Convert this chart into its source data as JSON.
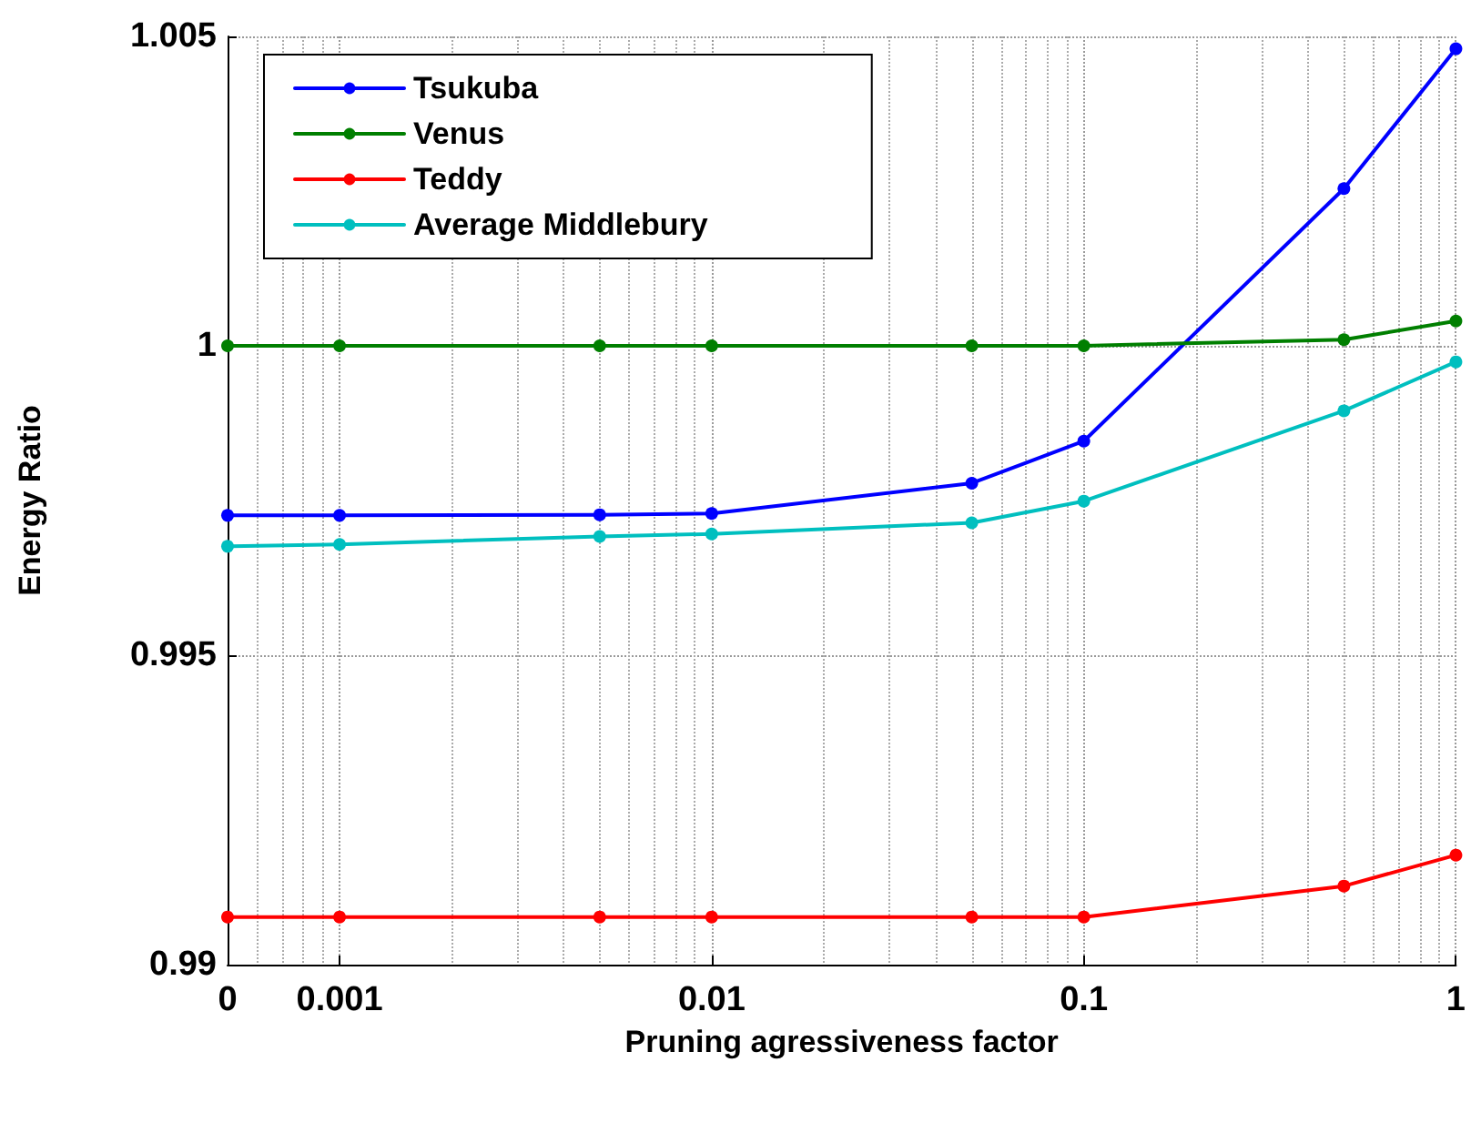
{
  "chart_data": {
    "type": "line",
    "xlabel": "Pruning agressiveness factor",
    "ylabel": "Energy Ratio",
    "x": [
      0.0005,
      0.001,
      0.005,
      0.01,
      0.05,
      0.1,
      0.5,
      1
    ],
    "series": [
      {
        "name": "Tsukuba",
        "color": "#0000ff",
        "values": [
          0.99726,
          0.99726,
          0.99727,
          0.99729,
          0.99778,
          0.99846,
          1.00254,
          1.0048
        ]
      },
      {
        "name": "Venus",
        "color": "#007f00",
        "values": [
          1.0,
          1.0,
          1.0,
          1.0,
          1.0,
          1.0,
          1.0001,
          1.0004
        ]
      },
      {
        "name": "Teddy",
        "color": "#ff0000",
        "values": [
          0.99077,
          0.99077,
          0.99077,
          0.99077,
          0.99077,
          0.99077,
          0.99127,
          0.99177
        ]
      },
      {
        "name": "Average Middlebury",
        "color": "#00bfbf",
        "values": [
          0.99676,
          0.99679,
          0.99692,
          0.99696,
          0.99714,
          0.99749,
          0.99895,
          0.99974
        ]
      }
    ],
    "log": "x",
    "xlim": [
      0.0005,
      1
    ],
    "xticks": [
      {
        "value": 0.0005,
        "label": "0"
      },
      0.001,
      0.01,
      0.1,
      1
    ],
    "ylim": [
      0.99,
      1.005
    ],
    "yticks": [
      0.99,
      0.995,
      1,
      1.005
    ],
    "grid": true,
    "legend": "top left",
    "marker": "circle",
    "line_style": "solid"
  }
}
